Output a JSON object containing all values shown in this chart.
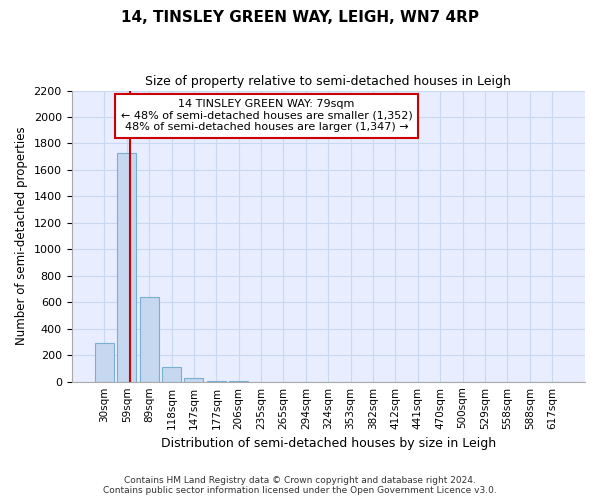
{
  "title": "14, TINSLEY GREEN WAY, LEIGH, WN7 4RP",
  "subtitle": "Size of property relative to semi-detached houses in Leigh",
  "xlabel": "Distribution of semi-detached houses by size in Leigh",
  "ylabel": "Number of semi-detached properties",
  "bin_labels": [
    "30sqm",
    "59sqm",
    "89sqm",
    "118sqm",
    "147sqm",
    "177sqm",
    "206sqm",
    "235sqm",
    "265sqm",
    "294sqm",
    "324sqm",
    "353sqm",
    "382sqm",
    "412sqm",
    "441sqm",
    "470sqm",
    "500sqm",
    "529sqm",
    "558sqm",
    "588sqm",
    "617sqm"
  ],
  "bar_values": [
    290,
    1730,
    640,
    110,
    30,
    5,
    2,
    0,
    0,
    0,
    0,
    0,
    0,
    0,
    0,
    0,
    0,
    0,
    0,
    0,
    0
  ],
  "bar_color": "#c5d8f0",
  "bar_edgecolor": "#7aafd4",
  "vline_color": "#cc0000",
  "annotation_box_color": "#ffffff",
  "annotation_box_edgecolor": "#cc0000",
  "annotation_line1": "14 TINSLEY GREEN WAY: 79sqm",
  "annotation_line2": "← 48% of semi-detached houses are smaller (1,352)",
  "annotation_line3": "48% of semi-detached houses are larger (1,347) →",
  "grid_color": "#c8d8f0",
  "background_color": "#e8eeff",
  "ylim": [
    0,
    2200
  ],
  "yticks": [
    0,
    200,
    400,
    600,
    800,
    1000,
    1200,
    1400,
    1600,
    1800,
    2000,
    2200
  ],
  "footnote1": "Contains HM Land Registry data © Crown copyright and database right 2024.",
  "footnote2": "Contains public sector information licensed under the Open Government Licence v3.0."
}
